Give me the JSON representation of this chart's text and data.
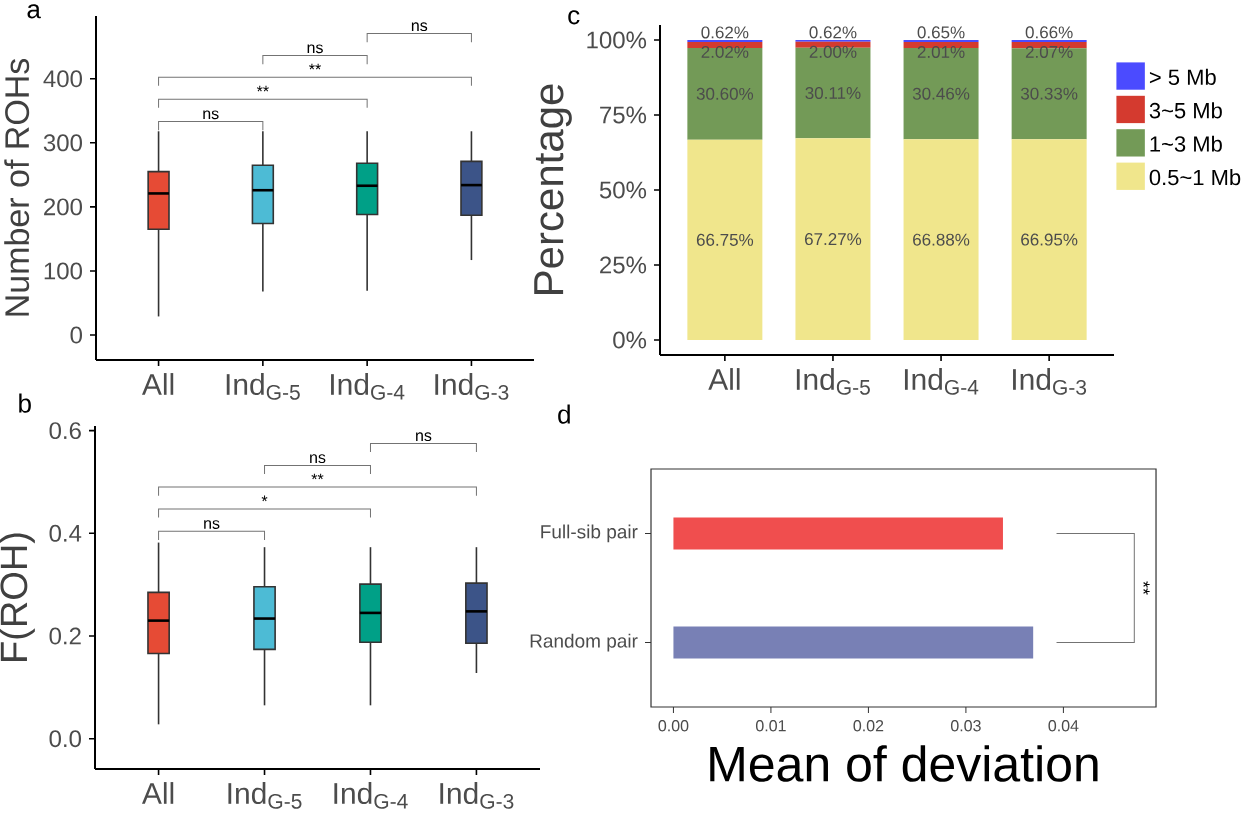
{
  "chart_data": [
    {
      "type": "box",
      "title": "a",
      "ylabel": "Number of ROHs",
      "categories": [
        "All",
        "Ind$_{G-5}$",
        "Ind$_{G-4}$",
        "Ind$_{G-3}$"
      ],
      "colors": [
        "#e64b35",
        "#4dbbd5",
        "#00a087",
        "#3c5488"
      ],
      "boxes": [
        {
          "low": 29,
          "q1": 165,
          "median": 221,
          "q3": 255,
          "high": 318
        },
        {
          "low": 68,
          "q1": 174,
          "median": 226,
          "q3": 265,
          "high": 318
        },
        {
          "low": 69,
          "q1": 188,
          "median": 233,
          "q3": 268,
          "high": 318
        },
        {
          "low": 117,
          "q1": 187,
          "median": 234,
          "q3": 271,
          "high": 318
        }
      ],
      "ylim": [
        -39,
        498
      ],
      "yticks": [
        0,
        100,
        200,
        300,
        400
      ],
      "annotations": [
        "ns",
        "**",
        "**",
        "ns",
        "ns"
      ]
    },
    {
      "type": "box",
      "title": "b",
      "ylabel": "F(ROH)",
      "categories": [
        "All",
        "Ind$_{G-5}$",
        "Ind$_{G-4}$",
        "Ind$_{G-3}$"
      ],
      "colors": [
        "#e64b35",
        "#4dbbd5",
        "#00a087",
        "#3c5488"
      ],
      "boxes": [
        {
          "low": 0.028,
          "q1": 0.166,
          "median": 0.23,
          "q3": 0.285,
          "high": 0.382
        },
        {
          "low": 0.065,
          "q1": 0.174,
          "median": 0.234,
          "q3": 0.296,
          "high": 0.373
        },
        {
          "low": 0.065,
          "q1": 0.188,
          "median": 0.245,
          "q3": 0.301,
          "high": 0.373
        },
        {
          "low": 0.128,
          "q1": 0.186,
          "median": 0.248,
          "q3": 0.303,
          "high": 0.373
        }
      ],
      "ylim": [
        -0.059,
        0.609
      ],
      "yticks": [
        {
          "value": 0,
          "label": "0.0"
        },
        {
          "value": 0.2,
          "label": "0.2"
        },
        {
          "value": 0.4,
          "label": "0.4"
        },
        {
          "value": 0.6,
          "label": "0.6"
        }
      ],
      "annotations": [
        "ns",
        "*",
        "**",
        "ns",
        "ns"
      ]
    },
    {
      "type": "bar",
      "title": "c",
      "ylabel": "Percentage",
      "stacked": true,
      "legend": "right",
      "categories": [
        "All",
        "Ind$_{G-5}$",
        "Ind$_{G-4}$",
        "Ind$_{G-3}$"
      ],
      "series": [
        {
          "name": "0.5~1 Mb",
          "color": "#f0e68c",
          "values": [
            66.75,
            67.27,
            66.88,
            66.95
          ],
          "value_labels": [
            "66.75%",
            "67.27%",
            "66.88%",
            "66.95%"
          ]
        },
        {
          "name": "1~3 Mb",
          "color": "#739a57",
          "values": [
            30.6,
            30.11,
            30.46,
            30.33
          ],
          "value_labels": [
            "30.60%",
            "30.11%",
            "30.46%",
            "30.33%"
          ]
        },
        {
          "name": "3~5 Mb",
          "color": "#d43a2f",
          "values": [
            2.02,
            2.0,
            2.01,
            2.07
          ],
          "value_labels": [
            "2.02%",
            "2.00%",
            "2.01%",
            "2.07%"
          ]
        },
        {
          "name": "> 5 Mb",
          "color": "#4b4bff",
          "values": [
            0.62,
            0.62,
            0.65,
            0.66
          ],
          "value_labels": [
            "0.62%",
            "0.62%",
            "0.65%",
            "0.66%"
          ]
        }
      ],
      "ylim": [
        -5,
        105
      ],
      "yticks": [
        {
          "value": 0,
          "label": "0%"
        },
        {
          "value": 25,
          "label": "25%"
        },
        {
          "value": 50,
          "label": "50%"
        },
        {
          "value": 75,
          "label": "75%"
        },
        {
          "value": 100,
          "label": "100%"
        }
      ]
    },
    {
      "type": "bar",
      "title": "d",
      "xlabel": "Mean of deviation",
      "orientation": "horizontal",
      "categories": [
        "Full-sib pair",
        "Random pair"
      ],
      "values": [
        0.0338,
        0.0369
      ],
      "colors": [
        "#f04e4e",
        "#7880b5"
      ],
      "xlim": [
        -0.0023,
        0.0495
      ],
      "xticks": [
        {
          "value": 0,
          "label": "0.00"
        },
        {
          "value": 0.01,
          "label": "0.01"
        },
        {
          "value": 0.02,
          "label": "0.02"
        },
        {
          "value": 0.03,
          "label": "0.03"
        },
        {
          "value": 0.04,
          "label": "0.04"
        }
      ],
      "annotations": [
        "**"
      ]
    }
  ]
}
